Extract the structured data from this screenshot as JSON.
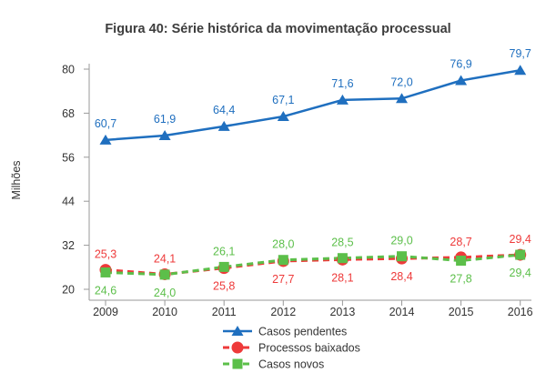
{
  "chart_data": {
    "type": "line",
    "title": "Figura 40: Série histórica da movimentação processual",
    "ylabel": "Milhões",
    "xlabel": "",
    "x": [
      "2009",
      "2010",
      "2011",
      "2012",
      "2013",
      "2014",
      "2015",
      "2016"
    ],
    "yticks": [
      20,
      32,
      44,
      56,
      68,
      80
    ],
    "ylim": [
      20,
      80
    ],
    "grid": false,
    "legend_position": "bottom-center",
    "series": [
      {
        "name": "Casos pendentes",
        "values": [
          60.7,
          61.9,
          64.4,
          67.1,
          71.6,
          72.0,
          76.9,
          79.7
        ],
        "labels": [
          "60,7",
          "61,9",
          "64,4",
          "67,1",
          "71,6",
          "72,0",
          "76,9",
          "79,7"
        ],
        "color": "#1f6fbf",
        "marker": "triangle",
        "line": "solid"
      },
      {
        "name": "Processos baixados",
        "values": [
          25.3,
          24.1,
          25.8,
          27.7,
          28.1,
          28.4,
          28.7,
          29.4
        ],
        "labels": [
          "25,3",
          "24,1",
          "25,8",
          "27,7",
          "28,1",
          "28,4",
          "28,7",
          "29,4"
        ],
        "color": "#ee3a3a",
        "marker": "circle",
        "line": "dashed"
      },
      {
        "name": "Casos novos",
        "values": [
          24.6,
          24.0,
          26.1,
          28.0,
          28.5,
          29.0,
          27.8,
          29.4
        ],
        "labels": [
          "24,6",
          "24,0",
          "26,1",
          "28,0",
          "28,5",
          "29,0",
          "27,8",
          "29,4"
        ],
        "color": "#5cbf4a",
        "marker": "square",
        "line": "dashed"
      }
    ]
  }
}
